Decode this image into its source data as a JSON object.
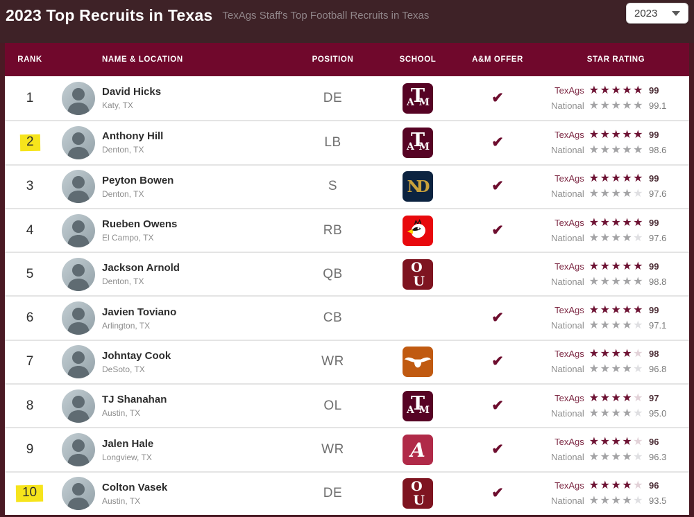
{
  "header": {
    "title": "2023 Top Recruits in Texas",
    "subtitle": "TexAgs Staff's Top Football Recruits in Texas",
    "year_select": {
      "value": "2023"
    }
  },
  "icons": {
    "check_icon": "✔",
    "star_icon": "★",
    "caret_down_icon": "▼"
  },
  "colors": {
    "topbar_bg": "#3e2227",
    "table_header_bg": "#70082c",
    "frame_border": "#4a1a24",
    "texags_star_filled": "#6d1233",
    "texags_star_empty": "#e2d2d8",
    "national_star_filled": "#a3a3a5",
    "national_star_empty": "#dfdfe2",
    "offer_check": "#6d0d2e",
    "rank_highlight": "#f6e41c"
  },
  "table": {
    "columns": [
      "RANK",
      "NAME & LOCATION",
      "POSITION",
      "SCHOOL",
      "A&M OFFER",
      "STAR RATING"
    ],
    "rating_labels": {
      "texags": "TexAgs",
      "national": "National"
    },
    "rows": [
      {
        "rank": "1",
        "rank_highlighted": false,
        "name": "David Hicks",
        "location": "Katy, TX",
        "position": "DE",
        "school": "texas-am",
        "school_name": "Texas A&M",
        "am_offer": true,
        "texags_stars": 5,
        "texags_value": "99",
        "national_stars": 5,
        "national_value": "99.1"
      },
      {
        "rank": "2",
        "rank_highlighted": true,
        "name": "Anthony Hill",
        "location": "Denton, TX",
        "position": "LB",
        "school": "texas-am",
        "school_name": "Texas A&M",
        "am_offer": true,
        "texags_stars": 5,
        "texags_value": "99",
        "national_stars": 5,
        "national_value": "98.6"
      },
      {
        "rank": "3",
        "rank_highlighted": false,
        "name": "Peyton Bowen",
        "location": "Denton, TX",
        "position": "S",
        "school": "notre-dame",
        "school_name": "Notre Dame",
        "am_offer": true,
        "texags_stars": 5,
        "texags_value": "99",
        "national_stars": 4,
        "national_value": "97.6"
      },
      {
        "rank": "4",
        "rank_highlighted": false,
        "name": "Rueben Owens",
        "location": "El Campo, TX",
        "position": "RB",
        "school": "louisville",
        "school_name": "Louisville",
        "am_offer": true,
        "texags_stars": 5,
        "texags_value": "99",
        "national_stars": 4,
        "national_value": "97.6"
      },
      {
        "rank": "5",
        "rank_highlighted": false,
        "name": "Jackson Arnold",
        "location": "Denton, TX",
        "position": "QB",
        "school": "oklahoma",
        "school_name": "Oklahoma",
        "am_offer": false,
        "texags_stars": 5,
        "texags_value": "99",
        "national_stars": 5,
        "national_value": "98.8"
      },
      {
        "rank": "6",
        "rank_highlighted": false,
        "name": "Javien Toviano",
        "location": "Arlington, TX",
        "position": "CB",
        "school": null,
        "school_name": null,
        "am_offer": true,
        "texags_stars": 5,
        "texags_value": "99",
        "national_stars": 4,
        "national_value": "97.1"
      },
      {
        "rank": "7",
        "rank_highlighted": false,
        "name": "Johntay Cook",
        "location": "DeSoto, TX",
        "position": "WR",
        "school": "texas",
        "school_name": "Texas",
        "am_offer": true,
        "texags_stars": 4,
        "texags_value": "98",
        "national_stars": 4,
        "national_value": "96.8"
      },
      {
        "rank": "8",
        "rank_highlighted": false,
        "name": "TJ Shanahan",
        "location": "Austin, TX",
        "position": "OL",
        "school": "texas-am",
        "school_name": "Texas A&M",
        "am_offer": true,
        "texags_stars": 4,
        "texags_value": "97",
        "national_stars": 4,
        "national_value": "95.0"
      },
      {
        "rank": "9",
        "rank_highlighted": false,
        "name": "Jalen Hale",
        "location": "Longview, TX",
        "position": "WR",
        "school": "alabama",
        "school_name": "Alabama",
        "am_offer": true,
        "texags_stars": 4,
        "texags_value": "96",
        "national_stars": 4,
        "national_value": "96.3"
      },
      {
        "rank": "10",
        "rank_highlighted": true,
        "name": "Colton Vasek",
        "location": "Austin, TX",
        "position": "DE",
        "school": "oklahoma",
        "school_name": "Oklahoma",
        "am_offer": true,
        "texags_stars": 4,
        "texags_value": "96",
        "national_stars": 4,
        "national_value": "93.5"
      }
    ]
  }
}
